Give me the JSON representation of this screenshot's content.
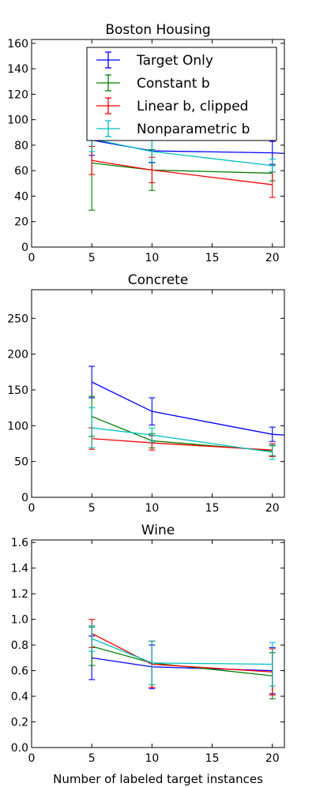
{
  "chart_data": [
    {
      "type": "line",
      "title": "Boston Housing",
      "xlabel": "",
      "ylabel": "",
      "xlim": [
        0,
        21
      ],
      "ylim": [
        0,
        163
      ],
      "x_ticks": [
        "0",
        "5",
        "10",
        "15",
        "20"
      ],
      "y_ticks": [
        "0",
        "20",
        "40",
        "60",
        "80",
        "100",
        "120",
        "140",
        "160"
      ],
      "x": [
        5,
        10,
        20,
        21
      ],
      "legend": "top-right",
      "series": [
        {
          "name": "Target Only",
          "color": "#0000ff",
          "values": [
            84,
            75.5,
            74,
            73.5
          ],
          "errors": [
            12,
            9,
            9,
            null
          ]
        },
        {
          "name": "Constant b",
          "color": "#008000",
          "values": [
            66,
            60.5,
            58,
            null
          ],
          "errors": [
            37,
            16,
            6,
            null
          ]
        },
        {
          "name": "Linear b, clipped",
          "color": "#ff0000",
          "values": [
            68,
            60.5,
            49,
            null
          ],
          "errors": [
            11,
            10,
            10,
            null
          ]
        },
        {
          "name": "Nonparametric b",
          "color": "#00bfbf",
          "values": [
            85,
            75,
            64,
            null
          ],
          "errors": [
            10,
            9,
            5,
            null
          ]
        }
      ]
    },
    {
      "type": "line",
      "title": "Concrete",
      "xlabel": "",
      "ylabel": "",
      "xlim": [
        0,
        21
      ],
      "ylim": [
        0,
        290
      ],
      "x_ticks": [
        "0",
        "5",
        "10",
        "15",
        "20"
      ],
      "y_ticks": [
        "0",
        "50",
        "100",
        "150",
        "200",
        "250"
      ],
      "x": [
        5,
        10,
        20,
        21
      ],
      "series": [
        {
          "name": "Target Only",
          "color": "#0000ff",
          "values": [
            161,
            120,
            88,
            87
          ],
          "errors": [
            22,
            19,
            10,
            null
          ]
        },
        {
          "name": "Constant b",
          "color": "#008000",
          "values": [
            113,
            79,
            65,
            null
          ],
          "errors": [
            28,
            10,
            7,
            null
          ]
        },
        {
          "name": "Linear b, clipped",
          "color": "#ff0000",
          "values": [
            82,
            76,
            66,
            null
          ],
          "errors": [
            15,
            10,
            9,
            null
          ]
        },
        {
          "name": "Nonparametric b",
          "color": "#00bfbf",
          "values": [
            97,
            87,
            63,
            null
          ],
          "errors": [
            28,
            10,
            10,
            null
          ]
        }
      ]
    },
    {
      "type": "line",
      "title": "Wine",
      "xlabel": "Number of labeled target instances",
      "ylabel": "",
      "xlim": [
        0,
        21
      ],
      "ylim": [
        0,
        1.62
      ],
      "x_ticks": [
        "0",
        "5",
        "10",
        "15",
        "20"
      ],
      "y_ticks": [
        "0.0",
        "0.2",
        "0.4",
        "0.6",
        "0.8",
        "1.0",
        "1.2",
        "1.4",
        "1.6"
      ],
      "x": [
        5,
        10,
        20,
        21
      ],
      "series": [
        {
          "name": "Target Only",
          "color": "#0000ff",
          "values": [
            0.7,
            0.63,
            0.6,
            null
          ],
          "errors": [
            0.17,
            0.17,
            0.18,
            null
          ]
        },
        {
          "name": "Constant b",
          "color": "#008000",
          "values": [
            0.79,
            0.66,
            0.56,
            null
          ],
          "errors": [
            0.15,
            0.17,
            0.18,
            null
          ]
        },
        {
          "name": "Linear b, clipped",
          "color": "#ff0000",
          "values": [
            0.89,
            0.65,
            0.59,
            null
          ],
          "errors": [
            0.11,
            0.18,
            0.18,
            null
          ]
        },
        {
          "name": "Nonparametric b",
          "color": "#00bfbf",
          "values": [
            0.85,
            0.66,
            0.65,
            null
          ],
          "errors": [
            0.1,
            0.17,
            0.17,
            null
          ]
        }
      ]
    }
  ]
}
